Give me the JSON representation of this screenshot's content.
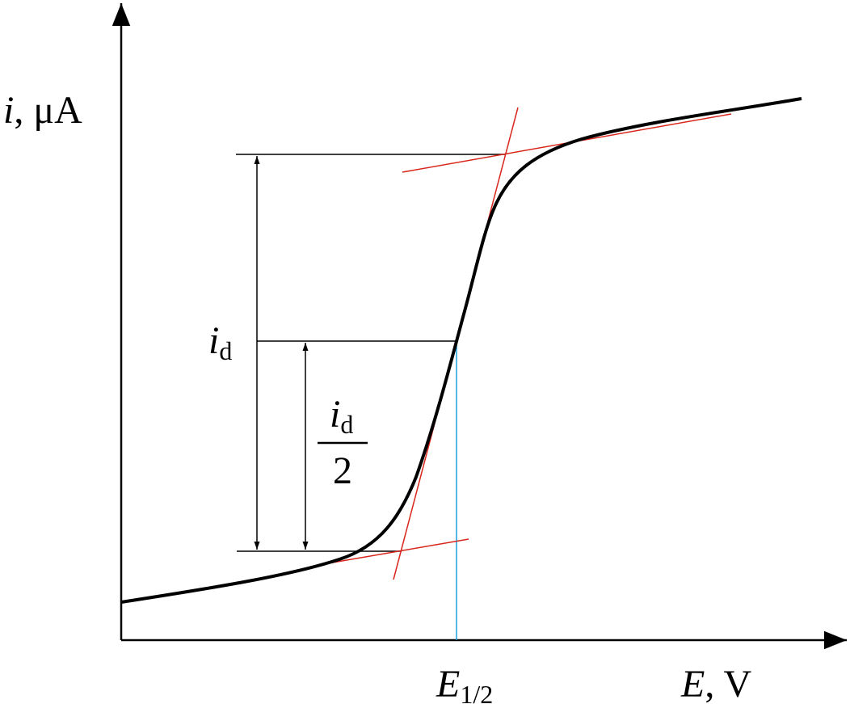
{
  "axes": {
    "y_label": {
      "variable": "i",
      "rest": ", μA"
    },
    "x_label": {
      "variable": "E",
      "rest": ", V"
    }
  },
  "annotations": {
    "half_wave_potential": {
      "main": "E",
      "sub": "1/2"
    },
    "diffusion_current": {
      "main": "i",
      "sub": "d"
    },
    "half_current": {
      "main": "i",
      "sub": "d",
      "denominator": "2"
    }
  }
}
